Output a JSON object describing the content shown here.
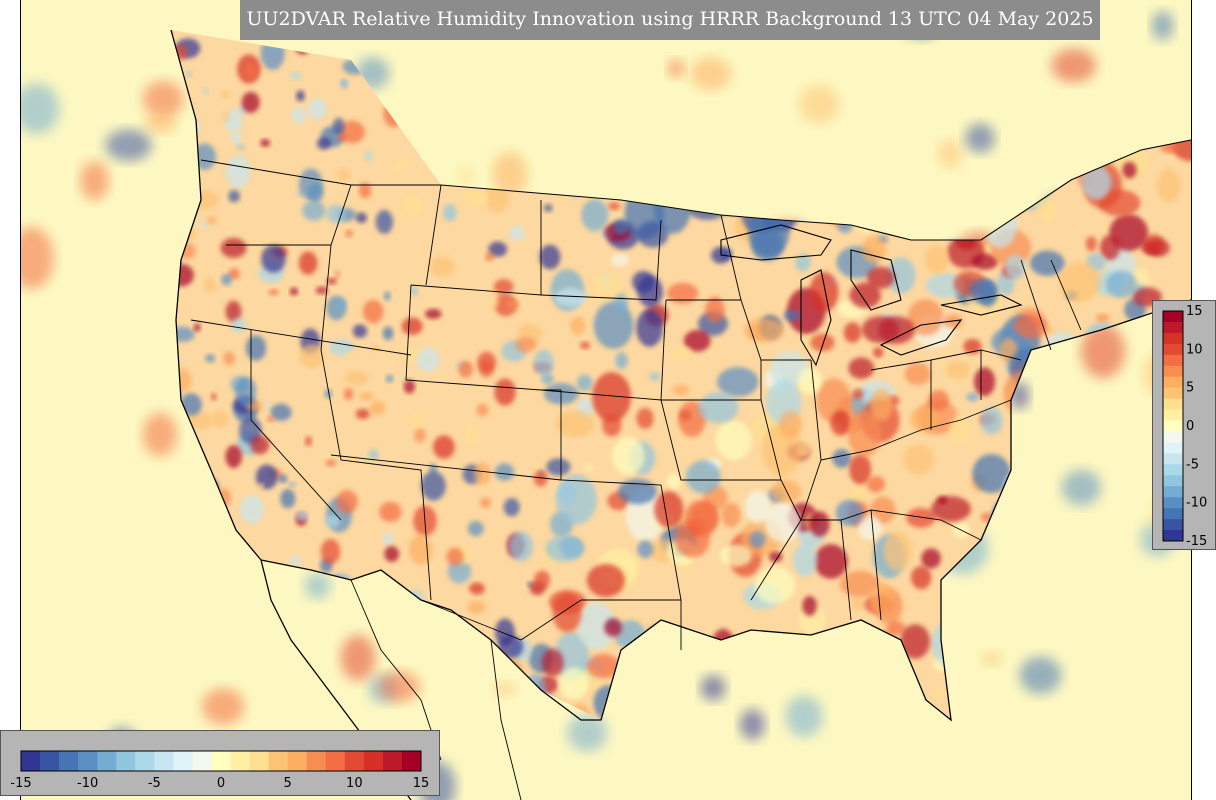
{
  "title": "UU2DVAR Relative Humidity Innovation using HRRR Background 13 UTC 04 May 2025",
  "colorbar": {
    "min": -15,
    "max": 15,
    "colors": [
      "#313695",
      "#3a54a4",
      "#4575b4",
      "#5b8fc3",
      "#74add1",
      "#92c5de",
      "#abd9e9",
      "#c7e6f0",
      "#e0f3f8",
      "#f3f9ef",
      "#ffffbf",
      "#fff0a6",
      "#fee090",
      "#fdc374",
      "#fdae61",
      "#f88d52",
      "#f46d43",
      "#e34a33",
      "#d73027",
      "#bb1b29",
      "#a50026"
    ],
    "horizontal_ticks": [
      {
        "value": -15,
        "label": "-15"
      },
      {
        "value": -10,
        "label": "-10"
      },
      {
        "value": -5,
        "label": "-5"
      },
      {
        "value": 0,
        "label": "0"
      },
      {
        "value": 5,
        "label": "5"
      },
      {
        "value": 10,
        "label": "10"
      },
      {
        "value": 15,
        "label": "15"
      }
    ],
    "vertical_ticks": [
      {
        "value": 15,
        "label": "15"
      },
      {
        "value": 10,
        "label": "10"
      },
      {
        "value": 5,
        "label": "5"
      },
      {
        "value": 0,
        "label": "0"
      },
      {
        "value": -5,
        "label": "-5"
      },
      {
        "value": -10,
        "label": "-10"
      },
      {
        "value": -15,
        "label": "-15"
      }
    ]
  },
  "map": {
    "background_color": "#fdf8c2",
    "ocean_color": "#fdf8c2"
  }
}
